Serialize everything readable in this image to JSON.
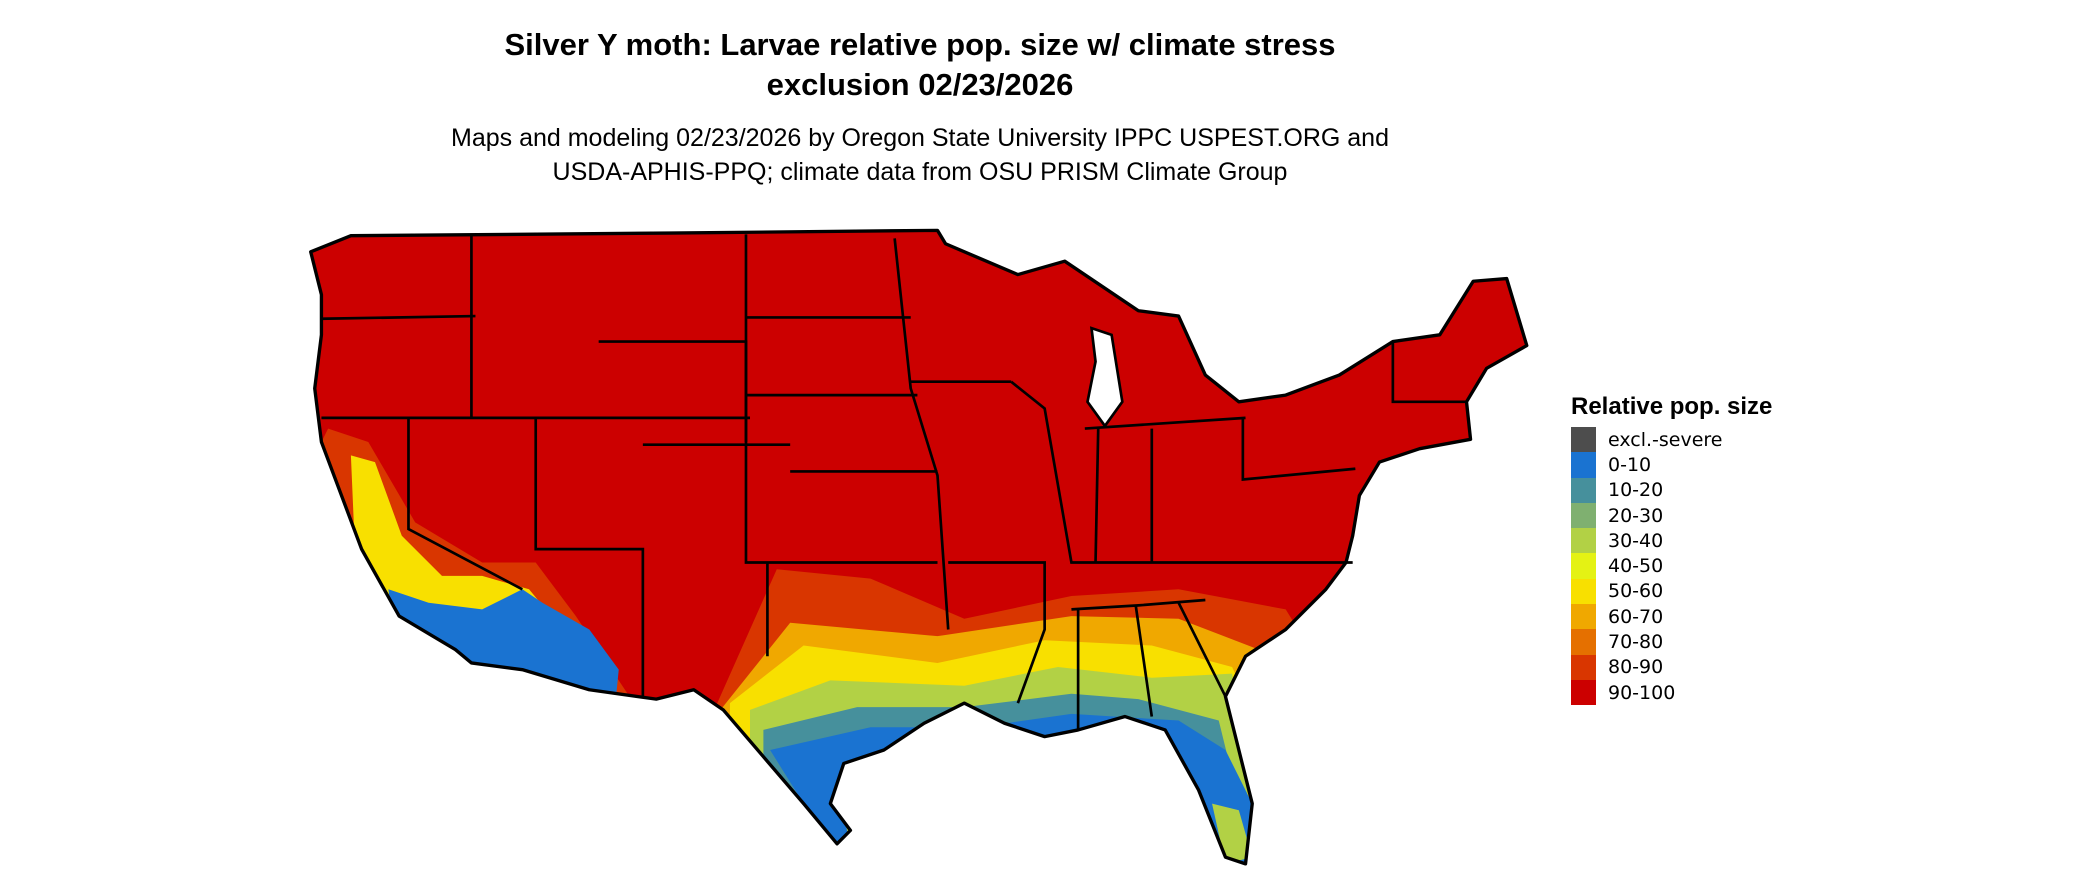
{
  "title": {
    "line1": "Silver Y moth: Larvae relative pop. size w/ climate stress",
    "line2": "exclusion 02/23/2026"
  },
  "subtitle": {
    "line1": "Maps and modeling 02/23/2026 by Oregon State University IPPC USPEST.ORG and",
    "line2": "USDA-APHIS-PPQ; climate data from OSU PRISM Climate Group"
  },
  "map": {
    "region": "Contiguous United States",
    "dominant_class": "90-100",
    "state_borders": true
  },
  "legend": {
    "title": "Relative pop. size",
    "items": [
      {
        "label": "excl.-severe",
        "color": "#4d4d4d"
      },
      {
        "label": "0-10",
        "color": "#1a73d1"
      },
      {
        "label": "10-20",
        "color": "#46909c"
      },
      {
        "label": "20-30",
        "color": "#7fb070"
      },
      {
        "label": "30-40",
        "color": "#b2d145"
      },
      {
        "label": "40-50",
        "color": "#e4f214"
      },
      {
        "label": "50-60",
        "color": "#f8e000"
      },
      {
        "label": "60-70",
        "color": "#f0a800"
      },
      {
        "label": "70-80",
        "color": "#e57000"
      },
      {
        "label": "80-90",
        "color": "#d93600"
      },
      {
        "label": "90-100",
        "color": "#cc0000"
      }
    ]
  }
}
